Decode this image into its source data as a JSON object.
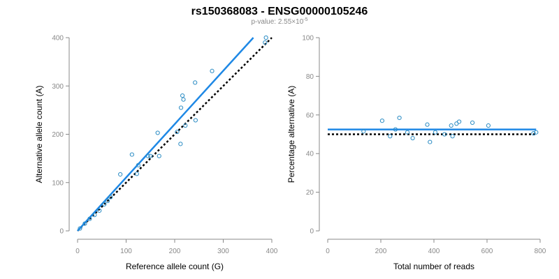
{
  "title": "rs150368083 - ENSG00000105246",
  "subtitle": {
    "prefix": "p-value: 2.55×10",
    "exponent": "-5"
  },
  "colors": {
    "points": "#2b8cc4",
    "fit": "#1e88e5",
    "reference": "#000000",
    "axis": "#888888"
  },
  "chart_data": [
    {
      "type": "scatter",
      "xlabel": "Reference allele count (G)",
      "ylabel": "Alternative allele count (A)",
      "xlim": [
        0,
        400
      ],
      "ylim": [
        0,
        400
      ],
      "xticks": [
        0,
        100,
        200,
        300,
        400
      ],
      "yticks": [
        0,
        100,
        200,
        300,
        400
      ],
      "grid": false,
      "points": [
        {
          "x": 5,
          "y": 5
        },
        {
          "x": 15,
          "y": 15
        },
        {
          "x": 25,
          "y": 25
        },
        {
          "x": 35,
          "y": 33
        },
        {
          "x": 45,
          "y": 42
        },
        {
          "x": 55,
          "y": 55
        },
        {
          "x": 62,
          "y": 62
        },
        {
          "x": 68,
          "y": 70
        },
        {
          "x": 88,
          "y": 117
        },
        {
          "x": 112,
          "y": 158
        },
        {
          "x": 122,
          "y": 118
        },
        {
          "x": 125,
          "y": 136
        },
        {
          "x": 145,
          "y": 155
        },
        {
          "x": 150,
          "y": 155
        },
        {
          "x": 165,
          "y": 203
        },
        {
          "x": 168,
          "y": 155
        },
        {
          "x": 205,
          "y": 205
        },
        {
          "x": 212,
          "y": 180
        },
        {
          "x": 213,
          "y": 255
        },
        {
          "x": 216,
          "y": 280
        },
        {
          "x": 218,
          "y": 272
        },
        {
          "x": 222,
          "y": 218
        },
        {
          "x": 242,
          "y": 307
        },
        {
          "x": 243,
          "y": 229
        },
        {
          "x": 277,
          "y": 331
        },
        {
          "x": 386,
          "y": 390
        },
        {
          "x": 388,
          "y": 400
        }
      ],
      "fit_line": {
        "x": [
          0,
          362
        ],
        "y": [
          0,
          400
        ]
      },
      "reference_line": {
        "x": [
          0,
          400
        ],
        "y": [
          0,
          400
        ]
      }
    },
    {
      "type": "scatter",
      "xlabel": "Total number of reads",
      "ylabel": "Percentage alternative (A)",
      "xlim": [
        0,
        800
      ],
      "ylim": [
        0,
        100
      ],
      "xticks": [
        0,
        200,
        400,
        600,
        800
      ],
      "yticks": [
        0,
        20,
        40,
        60,
        80,
        100
      ],
      "grid": false,
      "points": [
        {
          "x": 135,
          "y": 51.5
        },
        {
          "x": 205,
          "y": 57
        },
        {
          "x": 235,
          "y": 49
        },
        {
          "x": 255,
          "y": 52.5
        },
        {
          "x": 270,
          "y": 58.5
        },
        {
          "x": 300,
          "y": 51
        },
        {
          "x": 320,
          "y": 48
        },
        {
          "x": 375,
          "y": 55
        },
        {
          "x": 385,
          "y": 46
        },
        {
          "x": 405,
          "y": 51
        },
        {
          "x": 440,
          "y": 50
        },
        {
          "x": 465,
          "y": 54.5
        },
        {
          "x": 470,
          "y": 49
        },
        {
          "x": 485,
          "y": 55.5
        },
        {
          "x": 495,
          "y": 56.5
        },
        {
          "x": 545,
          "y": 56
        },
        {
          "x": 605,
          "y": 54.5
        },
        {
          "x": 775,
          "y": 50.5
        },
        {
          "x": 785,
          "y": 51
        }
      ],
      "fit_line": {
        "x": [
          0,
          785
        ],
        "y": [
          52.5,
          52.5
        ]
      },
      "reference_line": {
        "x": [
          0,
          785
        ],
        "y": [
          50,
          50
        ]
      }
    }
  ]
}
